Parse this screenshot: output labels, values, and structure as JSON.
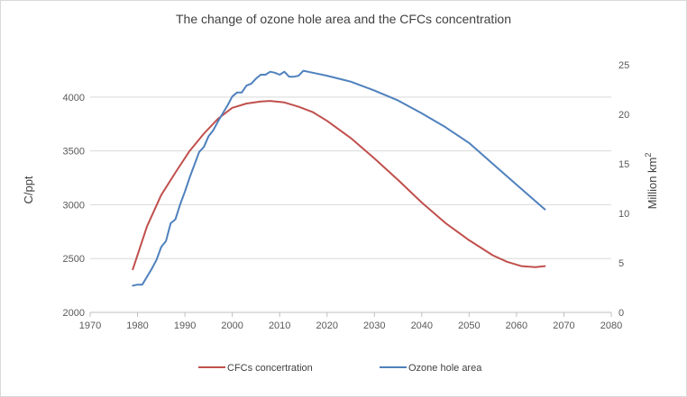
{
  "chart_data": {
    "type": "line",
    "title": "The change of ozone hole area and the CFCs concentration",
    "xlabel": "",
    "ylabel_left": "C/ppt",
    "ylabel_right_base": "Million km",
    "ylabel_right_sup": "2",
    "xlim": [
      1970,
      2080
    ],
    "xticks": [
      1970,
      1980,
      1990,
      2000,
      2010,
      2020,
      2030,
      2040,
      2050,
      2060,
      2070,
      2080
    ],
    "ylim_left": [
      2000,
      4300
    ],
    "yticks_left": [
      2000,
      2500,
      3000,
      3500,
      4000
    ],
    "ylim_right": [
      0,
      25
    ],
    "yticks_right": [
      0,
      5,
      10,
      15,
      20,
      25
    ],
    "grid": "horizontal",
    "legend_position": "bottom",
    "series": [
      {
        "name": "CFCs concertration",
        "axis": "left",
        "color": "#c0504d",
        "x": [
          1979,
          1982,
          1985,
          1988,
          1991,
          1994,
          1997,
          2000,
          2003,
          2006,
          2008,
          2011,
          2014,
          2017,
          2020,
          2025,
          2030,
          2035,
          2040,
          2045,
          2050,
          2055,
          2058,
          2061,
          2064,
          2066
        ],
        "y": [
          2400,
          2800,
          3090,
          3300,
          3500,
          3660,
          3800,
          3900,
          3940,
          3960,
          3965,
          3950,
          3910,
          3860,
          3780,
          3620,
          3430,
          3230,
          3020,
          2830,
          2670,
          2530,
          2470,
          2430,
          2420,
          2430
        ]
      },
      {
        "name": "Ozone hole area",
        "axis": "right",
        "color": "#4f81bd",
        "x": [
          1979,
          1980,
          1981,
          1982,
          1983,
          1984,
          1985,
          1986,
          1987,
          1988,
          1989,
          1990,
          1991,
          1992,
          1993,
          1994,
          1995,
          1996,
          1997,
          1998,
          1999,
          2000,
          2001,
          2002,
          2003,
          2004,
          2005,
          2006,
          2007,
          2008,
          2009,
          2010,
          2011,
          2012,
          2013,
          2014,
          2015,
          2016,
          2017,
          2020,
          2025,
          2030,
          2035,
          2040,
          2045,
          2050,
          2055,
          2060,
          2066
        ],
        "y": [
          2.7,
          2.8,
          2.8,
          3.6,
          4.4,
          5.3,
          6.6,
          7.2,
          9.0,
          9.4,
          10.9,
          12.2,
          13.6,
          14.9,
          16.2,
          16.7,
          17.8,
          18.4,
          19.3,
          20.1,
          20.9,
          21.8,
          22.2,
          22.2,
          22.9,
          23.1,
          23.6,
          24.0,
          24.0,
          24.3,
          24.2,
          24.0,
          24.3,
          23.8,
          23.8,
          23.9,
          24.4,
          24.3,
          24.2,
          23.9,
          23.3,
          22.4,
          21.4,
          20.1,
          18.7,
          17.1,
          15.0,
          12.9,
          10.4
        ]
      }
    ]
  }
}
